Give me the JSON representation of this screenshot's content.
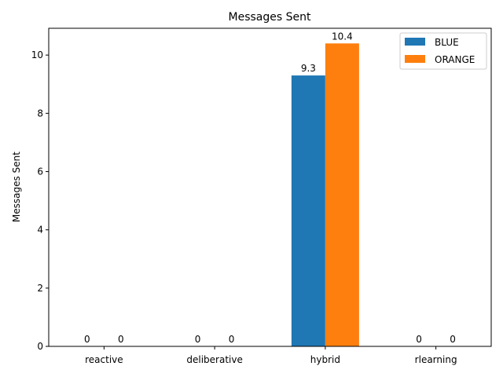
{
  "chart_data": {
    "type": "bar",
    "title": "Messages Sent",
    "xlabel": "",
    "ylabel": "Messages Sent",
    "categories": [
      "reactive",
      "deliberative",
      "hybrid",
      "rlearning"
    ],
    "series": [
      {
        "name": "BLUE",
        "values": [
          0,
          0,
          9.3,
          0
        ],
        "labels": [
          "0",
          "0",
          "9.3",
          "0"
        ],
        "color": "#1f77b4"
      },
      {
        "name": "ORANGE",
        "values": [
          0,
          0,
          10.4,
          0
        ],
        "labels": [
          "0",
          "0",
          "10.4",
          "0"
        ],
        "color": "#ff7f0e"
      }
    ],
    "ylim": [
      0,
      10.92
    ],
    "yticks": [
      0,
      2,
      4,
      6,
      8,
      10
    ],
    "ytick_labels": [
      "0",
      "2",
      "4",
      "6",
      "8",
      "10"
    ],
    "grid": false,
    "legend_position": "top-right"
  }
}
